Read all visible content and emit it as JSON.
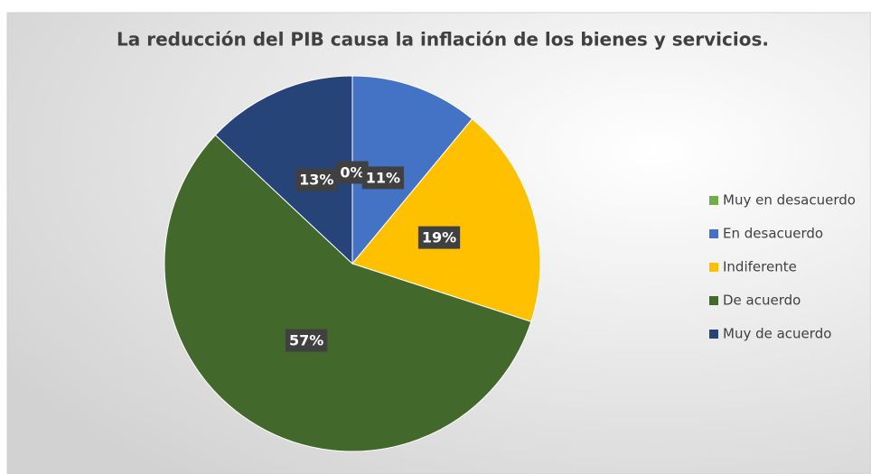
{
  "chart_data": {
    "type": "pie",
    "title": "La reducción del PIB causa la inflación de los bienes y servicios.",
    "categories": [
      "Muy en desacuerdo",
      "En desacuerdo",
      "Indiferente",
      "De acuerdo",
      "Muy de acuerdo"
    ],
    "values": [
      0,
      11,
      19,
      57,
      13
    ],
    "value_labels": [
      "0%",
      "11%",
      "19%",
      "57%",
      "13%"
    ],
    "colors": [
      "#70ad47",
      "#4472c4",
      "#ffc000",
      "#43682b",
      "#264478"
    ],
    "legend": "right"
  }
}
